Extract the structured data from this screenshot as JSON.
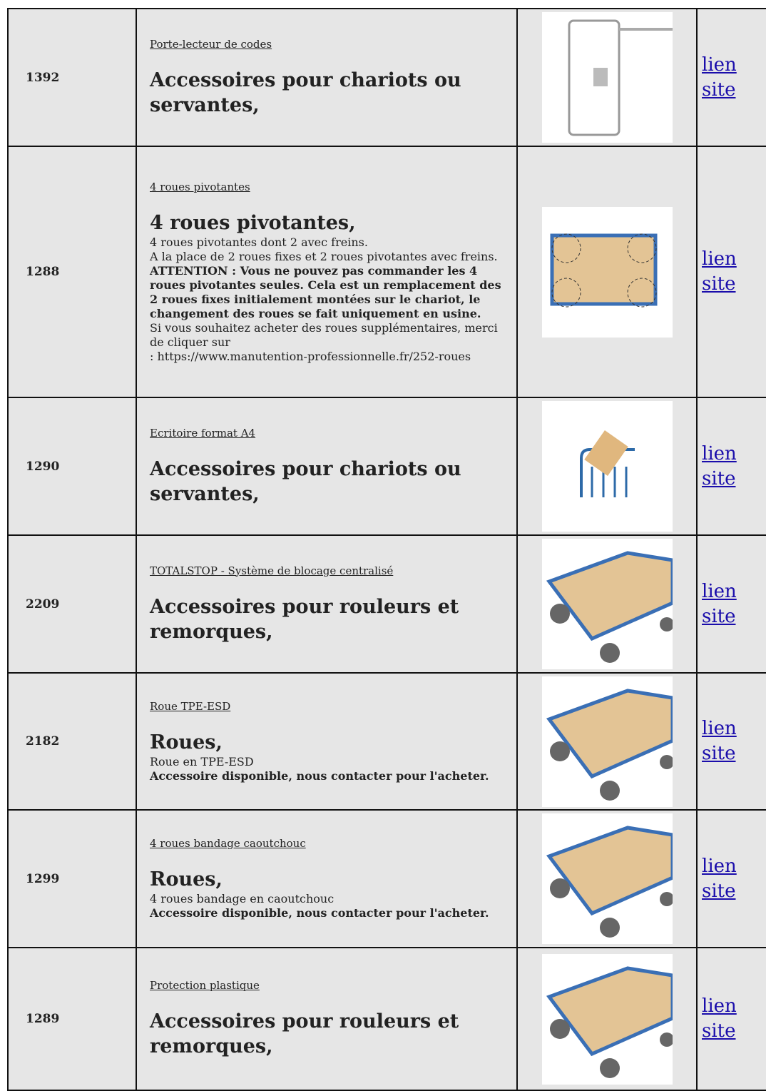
{
  "table": {
    "rows": [
      {
        "id": "1392",
        "label": "Porte-lecteur de codes",
        "heading": "Accessoires pour chariots ou servantes,",
        "description": [],
        "link": "lien site"
      },
      {
        "id": "1288",
        "label": "4 roues pivotantes",
        "heading": "4 roues pivotantes,",
        "description": [
          {
            "text": "4 roues pivotantes dont 2 avec freins.",
            "bold": false
          },
          {
            "text": "A la place de 2 roues fixes et 2 roues pivotantes avec freins.",
            "bold": false
          },
          {
            "text": "ATTENTION : Vous ne pouvez pas commander les 4 roues pivotantes seules. Cela est un remplacement des 2 roues fixes initialement montées sur le chariot, le changement des roues se fait uniquement en usine.",
            "bold": true
          },
          {
            "text": "Si vous souhaitez acheter des roues supplémentaires, merci de cliquer sur",
            "bold": false
          },
          {
            "text": ": https://www.manutention-professionnelle.fr/252-roues",
            "bold": false
          }
        ],
        "link": "lien site"
      },
      {
        "id": "1290",
        "label": "Ecritoire format A4",
        "heading": "Accessoires pour chariots ou servantes,",
        "description": [],
        "link": "lien site"
      },
      {
        "id": "2209",
        "label": "TOTALSTOP - Système de blocage centralisé",
        "heading": "Accessoires pour rouleurs et remorques,",
        "description": [],
        "link": "lien site"
      },
      {
        "id": "2182",
        "label": "Roue TPE-ESD",
        "heading": "Roues,",
        "description": [
          {
            "text": "Roue en TPE-ESD",
            "bold": false
          },
          {
            "text": "Accessoire disponible, nous contacter pour l'acheter.",
            "bold": true
          }
        ],
        "link": "lien site"
      },
      {
        "id": "1299",
        "label": "4 roues bandage caoutchouc",
        "heading": "Roues,",
        "description": [
          {
            "text": "4 roues bandage en caoutchouc",
            "bold": false
          },
          {
            "text": "Accessoire disponible, nous contacter pour l'acheter.",
            "bold": true
          }
        ],
        "link": "lien site"
      },
      {
        "id": "1289",
        "label": "Protection plastique",
        "heading": "Accessoires pour rouleurs et remorques,",
        "description": [],
        "link": "lien site"
      }
    ]
  }
}
